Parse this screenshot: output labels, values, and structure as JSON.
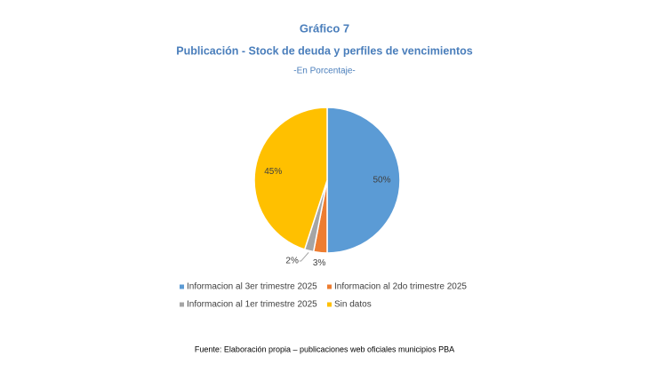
{
  "chart_data": {
    "type": "pie",
    "title": "Gráfico 7",
    "subtitle": "Publicación - Stock de deuda y perfiles de vencimientos",
    "unit_note": "-En Porcentaje-",
    "categories": [
      "Informacion al 3er trimestre 2025",
      "Informacion al 2do trimestre 2025",
      "Informacion al 1er trimestre 2025",
      "Sin datos"
    ],
    "values": [
      50,
      3,
      2,
      45
    ],
    "value_labels": [
      "50%",
      "3%",
      "2%",
      "45%"
    ],
    "colors": [
      "#5b9bd5",
      "#ed7d31",
      "#a5a5a5",
      "#ffc000"
    ],
    "source": "Fuente: Elaboración propia – publicaciones web oficiales municipios PBA"
  }
}
